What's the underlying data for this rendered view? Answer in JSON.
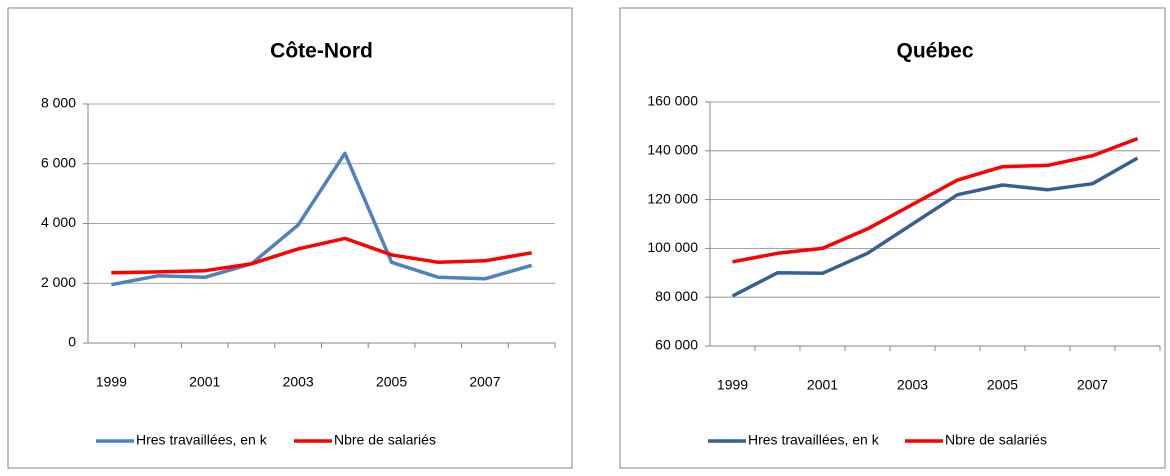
{
  "chart_data": [
    {
      "type": "line",
      "title": "Côte-Nord",
      "categories": [
        "1999",
        null,
        "2001",
        null,
        "2003",
        null,
        "2005",
        null,
        "2007",
        null
      ],
      "series": [
        {
          "name": "Hres travaillées, en k",
          "color": "#4f81bd",
          "values": [
            1950,
            2250,
            2200,
            2650,
            3950,
            6350,
            2700,
            2200,
            2150,
            2600
          ]
        },
        {
          "name": "Nbre de salariés",
          "color": "#ff0000",
          "values": [
            2350,
            2380,
            2420,
            2650,
            3150,
            3500,
            2950,
            2700,
            2750,
            3020
          ]
        }
      ],
      "ylim": [
        0,
        8000
      ],
      "yticks": [
        0,
        {
          "value": 2000,
          "label": "2 000"
        },
        {
          "value": 4000,
          "label": "4 000"
        },
        {
          "value": 6000,
          "label": "6 000"
        },
        {
          "value": 8000,
          "label": "8 000"
        }
      ],
      "grid": true,
      "legend": "bottom"
    },
    {
      "type": "line",
      "title": "Québec",
      "categories": [
        "1999",
        null,
        "2001",
        null,
        "2003",
        null,
        "2005",
        null,
        "2007",
        null
      ],
      "series": [
        {
          "name": "Hres travaillées, en k",
          "color": "#376092",
          "values": [
            80500,
            90000,
            89800,
            98000,
            110000,
            122000,
            126000,
            124000,
            126500,
            137000
          ]
        },
        {
          "name": "Nbre de salariés",
          "color": "#ff0000",
          "values": [
            94500,
            98000,
            100000,
            108000,
            118000,
            128000,
            133500,
            134000,
            138000,
            145000
          ]
        }
      ],
      "ylim": [
        60000,
        160000
      ],
      "yticks": [
        {
          "value": 60000,
          "label": "60 000"
        },
        {
          "value": 80000,
          "label": "80 000"
        },
        {
          "value": 100000,
          "label": "100 000"
        },
        {
          "value": 120000,
          "label": "120 000"
        },
        {
          "value": 140000,
          "label": "140 000"
        },
        {
          "value": 160000,
          "label": "160 000"
        }
      ],
      "grid": true,
      "legend": "bottom"
    }
  ]
}
